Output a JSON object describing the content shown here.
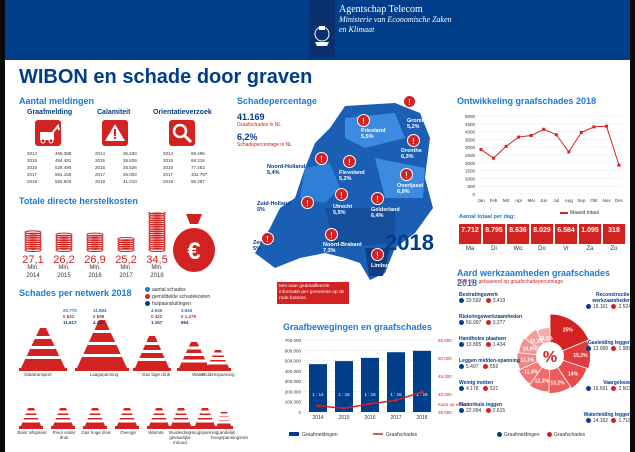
{
  "header": {
    "org": "Agentschap Telecom",
    "ministry_line1": "Ministerie van Economische Zaken",
    "ministry_line2": "en Klimaat"
  },
  "title": "WIBON en schade door graven",
  "meldingen": {
    "title": "Aantal meldingen",
    "categories": [
      "Graafmelding",
      "Calamiteit",
      "Orientatieverzoek"
    ],
    "years": [
      "2014",
      "2015",
      "2016",
      "2017",
      "2018"
    ],
    "graafmelding": [
      "465.388",
      "494.481",
      "526.490",
      "581.155",
      "594.603"
    ],
    "calamiteit": [
      "35.633",
      "36.839",
      "25.626",
      "25.003",
      "41.010"
    ],
    "orientatie": [
      "65.495",
      "68.216",
      "77.463",
      "102.797",
      "95.287"
    ]
  },
  "herstelkosten": {
    "title": "Totale directe herstelkosten",
    "values": [
      "27,1",
      "26,2",
      "26,9",
      "25,2",
      "34,5"
    ],
    "unit": "Mln.",
    "years": [
      "2014",
      "2015",
      "2016",
      "2017",
      "2018"
    ],
    "euro": "€"
  },
  "netwerk": {
    "title": "Schades per netwerk 2018",
    "legend": [
      "aantal schades",
      "gemiddelde schadekosten",
      "hulpaansluitingen"
    ],
    "top_labels": [
      "Datatransport",
      "Laagspanning",
      "Gas lage druk",
      "Water",
      "Middenspanning"
    ],
    "bottom_labels": [
      "Buis/ sifspanel",
      "Riool onder druk",
      "Gas hoge druk",
      "Overige",
      "Warmte",
      "Buisleiding gevaarlijke inhoud",
      "Hoogspanning",
      "Landelijk hoogspanningsnet"
    ],
    "top_values": [
      [
        "",
        "",
        ""
      ],
      [
        "11.884",
        "€ 658",
        "4.347"
      ],
      [
        "4.946",
        "€ 422",
        "1.157"
      ],
      [
        "3.944",
        "€ 1.279",
        "854"
      ],
      [
        "",
        "",
        ""
      ]
    ],
    "extra_top": [
      "20.770",
      "€ 631",
      "11.617"
    ]
  },
  "map": {
    "title": "Schadepercentage",
    "stat1_value": "41.169",
    "stat1_label": "Graafschades in NL",
    "stat2_value": "6,2%",
    "stat2_label": "Schadepercentage in NL",
    "provinces": [
      {
        "name": "Groningen",
        "pct": "5,2%"
      },
      {
        "name": "Friesland",
        "pct": "5,5%"
      },
      {
        "name": "Drenthe",
        "pct": "6,3%"
      },
      {
        "name": "Noord-Holland",
        "pct": "5,4%"
      },
      {
        "name": "Flevoland",
        "pct": "5,2%"
      },
      {
        "name": "Overijssel",
        "pct": "6,9%"
      },
      {
        "name": "Zuid-Holland",
        "pct": "5%"
      },
      {
        "name": "Utrecht",
        "pct": "5,5%"
      },
      {
        "name": "Gelderland",
        "pct": "6,4%"
      },
      {
        "name": "Zeeland",
        "pct": "5%"
      },
      {
        "name": "Noord-Brabant",
        "pct": "7,3%"
      },
      {
        "name": "Limburg",
        "pct": "8,7%"
      }
    ],
    "year": "2018",
    "note": "Met naar gedetailleerde informatie per gemeente op de rode buttons."
  },
  "graafbewegingen": {
    "title": "Graafbewegingen en graafschades",
    "legend_bars": "Graafmeldingen",
    "legend_line": "Graafschades",
    "right_axis_label": "Kans op schade",
    "left_ticks": [
      "700.000",
      "600.000",
      "500.000",
      "400.000",
      "300.000",
      "200.000",
      "100.000",
      "0"
    ],
    "right_ticks": [
      "65.000",
      "60.000",
      "45.000",
      "40.000",
      "35.000"
    ],
    "kans": [
      "1 : 14",
      "1 : 15",
      "1 : 15",
      "1 : 16",
      "1 : 15"
    ]
  },
  "ontwikkeling": {
    "title": "Ontwikkeling graafschades 2018",
    "legend": "Maand totaal",
    "per_dag_title": "Aantal totaal per dag:",
    "days": [
      "Ma",
      "Di",
      "Wo",
      "Do",
      "Vr",
      "Za",
      "Zo"
    ],
    "day_values": [
      "7.712",
      "8.795",
      "8.636",
      "8.029",
      "6.584",
      "1.095",
      "318"
    ],
    "months": [
      "Jan",
      "Feb",
      "Mrt",
      "Apr",
      "Mei",
      "Jun",
      "Jul",
      "Aug",
      "Sep",
      "Okt",
      "Nov",
      "Dec"
    ],
    "y_ticks": [
      "5000",
      "4500",
      "4000",
      "3500",
      "3000",
      "2500",
      "2000",
      "1500",
      "1000",
      "500",
      "0"
    ]
  },
  "aard": {
    "title": "Aard werkzaamheden graafschades 2018",
    "subtitle": "TOP 10 - gebaseerd op graafschadepercentage",
    "left": [
      {
        "label": "Bestratingswerk",
        "a": "33.592",
        "b": "3.419"
      },
      {
        "label": "Rioleringswerkzaamheden",
        "a": "50.997",
        "b": "3.277"
      },
      {
        "label": "Handholes plaatsen",
        "a": "13.895",
        "b": "1.434"
      },
      {
        "label": "Leggen midden-spanning",
        "a": "5.497",
        "b": "556"
      },
      {
        "label": "Weinig motten",
        "a": "4.178",
        "b": "521"
      },
      {
        "label": "Monorbuis leggen",
        "a": "22.994",
        "b": "2.615"
      }
    ],
    "right": [
      {
        "label": "Reconstructie-werkzaamheden",
        "a": "16.161",
        "b": "2.524"
      },
      {
        "label": "Gasleiding leggen",
        "a": "13.068",
        "b": "1.989"
      },
      {
        "label": "Vaargelouw",
        "a": "16.561",
        "b": "2.503"
      },
      {
        "label": "Waterleiding leggen",
        "a": "14.162",
        "b": "1.718"
      }
    ],
    "wedges": [
      "25%",
      "15,2%",
      "14%",
      "13,2%",
      "12,3%",
      "11,4%",
      "11,1%",
      "10,8%",
      "10,3%",
      "10,1%"
    ],
    "legend": [
      "Graafmeldingen",
      "Graafschades"
    ],
    "center": "%"
  },
  "chart_data": [
    {
      "type": "line",
      "title": "Ontwikkeling graafschades 2018",
      "categories": [
        "Jan",
        "Feb",
        "Mrt",
        "Apr",
        "Mei",
        "Jun",
        "Jul",
        "Aug",
        "Sep",
        "Okt",
        "Nov",
        "Dec"
      ],
      "series": [
        {
          "name": "Maand totaal",
          "values": [
            2850,
            2300,
            3050,
            3650,
            3750,
            4150,
            3800,
            2700,
            3950,
            4300,
            4350,
            1850
          ]
        }
      ],
      "ylim": [
        0,
        5000
      ]
    },
    {
      "type": "bar",
      "title": "Graafbewegingen en graafschades",
      "categories": [
        "2014",
        "2015",
        "2016",
        "2017",
        "2018"
      ],
      "series": [
        {
          "name": "Graafmeldingen",
          "values": [
            465388,
            494481,
            526490,
            581155,
            594603
          ]
        },
        {
          "name": "Graafschades",
          "values": [
            33500,
            32000,
            34500,
            36500,
            41169
          ]
        }
      ],
      "ylim": [
        0,
        700000
      ]
    }
  ]
}
